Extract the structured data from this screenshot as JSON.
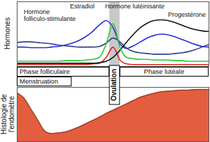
{
  "chart_data": [
    {
      "type": "line",
      "ylabel": "Hormones",
      "xlim": [
        0,
        28
      ],
      "ylim": [
        0,
        100
      ],
      "tick_labels": false,
      "x": [
        0,
        1,
        2,
        3,
        4,
        5,
        6,
        7,
        8,
        9,
        10,
        11,
        12,
        13,
        14,
        15,
        16,
        17,
        18,
        19,
        20,
        21,
        22,
        23,
        24,
        25,
        26,
        27,
        28
      ],
      "series": [
        {
          "name": "Hormone folliculo-stimulante",
          "color": "#2f3f86",
          "values": [
            37,
            38,
            38,
            37,
            36,
            35,
            33,
            32,
            31,
            30,
            30,
            30,
            31,
            36,
            44,
            38,
            28,
            23,
            21,
            20,
            19,
            19,
            19,
            20,
            21,
            23,
            26,
            30,
            34
          ]
        },
        {
          "name": "Estradiol",
          "color": "#2b2bd9",
          "values": [
            30,
            30,
            29,
            29,
            29,
            30,
            31,
            33,
            36,
            40,
            46,
            54,
            64,
            71,
            60,
            35,
            28,
            32,
            38,
            44,
            48,
            50,
            49,
            46,
            42,
            38,
            34,
            31,
            30
          ]
        },
        {
          "name": "Hormone lutéinisante",
          "color": "#22cc33",
          "values": [
            8,
            8,
            8,
            8,
            8,
            8,
            8,
            9,
            9,
            9,
            10,
            11,
            14,
            35,
            66,
            30,
            14,
            12,
            11,
            11,
            10,
            10,
            10,
            9,
            9,
            8,
            8,
            8,
            8
          ]
        },
        {
          "name": "Progestérone",
          "color": "#111111",
          "values": [
            5,
            5,
            5,
            5,
            5,
            5,
            5,
            5,
            5,
            5,
            5,
            5,
            6,
            8,
            14,
            25,
            38,
            50,
            60,
            67,
            71,
            72,
            71,
            68,
            64,
            60,
            57,
            55,
            54
          ]
        },
        {
          "color": "#e0201a",
          "values": [
            3,
            3,
            3,
            3,
            3,
            3,
            3,
            3,
            3,
            3,
            3,
            4,
            5,
            14,
            30,
            10,
            4,
            3,
            3,
            3,
            3,
            3,
            3,
            3,
            3,
            3,
            3,
            3,
            3
          ]
        }
      ],
      "phases": [
        {
          "label": "Menstruation",
          "start": 0,
          "end": 8
        },
        {
          "label": "Phase folliculaire",
          "start": 0,
          "end": 13.5
        },
        {
          "label": "Ovulation",
          "start": 13.5,
          "end": 15
        },
        {
          "label": "Phase lutéale",
          "start": 15,
          "end": 28
        }
      ]
    },
    {
      "type": "area",
      "ylabel": "Histologie de l'endomètre",
      "xlim": [
        0,
        28
      ],
      "ylim": [
        0,
        100
      ],
      "tick_labels": false,
      "color": "#e35d3f",
      "x": [
        0,
        1,
        2,
        3,
        4,
        5,
        6,
        7,
        8,
        9,
        10,
        11,
        12,
        13,
        14,
        15,
        16,
        17,
        18,
        19,
        20,
        21,
        22,
        23,
        24,
        25,
        26,
        27,
        28
      ],
      "values": [
        90,
        80,
        60,
        40,
        20,
        15,
        16,
        18,
        22,
        27,
        33,
        39,
        45,
        52,
        58,
        64,
        70,
        76,
        82,
        86,
        89,
        92,
        93,
        94,
        95,
        95,
        96,
        96,
        96
      ]
    }
  ]
}
